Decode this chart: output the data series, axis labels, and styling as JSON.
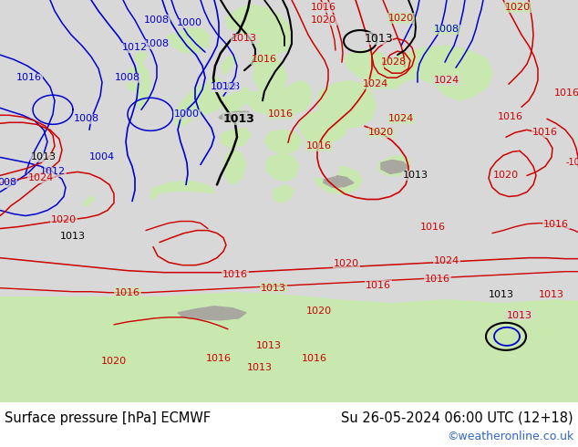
{
  "title_left": "Surface pressure [hPa] ECMWF",
  "title_right": "Su 26-05-2024 06:00 UTC (12+18)",
  "watermark": "©weatheronline.co.uk",
  "bg_color": "#ffffff",
  "footer_bg": "#ffffff",
  "sea_color": "#d8d8d8",
  "land_color": "#c8e8b0",
  "mountain_color": "#a8a8a0",
  "left_label_color": "#000000",
  "right_label_color": "#000000",
  "watermark_color": "#3366cc",
  "font_size_footer": 10.5,
  "font_size_watermark": 9,
  "font_size_label": 8
}
